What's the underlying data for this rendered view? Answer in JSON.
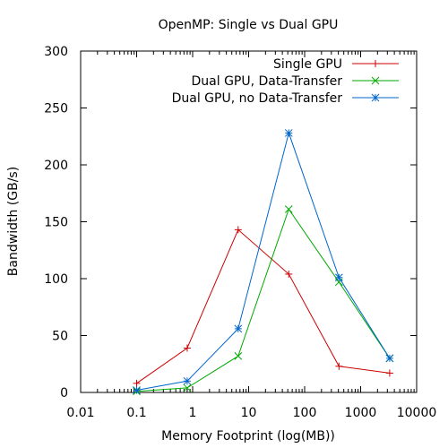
{
  "chart_data": {
    "type": "line",
    "title": "OpenMP: Single vs Dual GPU",
    "xlabel": "Memory Footprint (log(MB))",
    "ylabel": "Bandwidth (GB/s)",
    "x_scale": "log",
    "xlim": [
      0.01,
      10000
    ],
    "ylim": [
      0,
      300
    ],
    "x_ticks": [
      0.01,
      0.1,
      1,
      10,
      100,
      1000,
      10000
    ],
    "x_tick_labels": [
      "0.01",
      "0.1",
      "1",
      "10",
      "100",
      "1000",
      "10000"
    ],
    "y_ticks": [
      0,
      50,
      100,
      150,
      200,
      250,
      300
    ],
    "y_tick_labels": [
      "0",
      "50",
      "100",
      "150",
      "200",
      "250",
      "300"
    ],
    "legend_position": "top-right",
    "grid": false,
    "series": [
      {
        "name": "Single GPU",
        "color": "#cc0000",
        "marker": "plus",
        "x": [
          0.1,
          0.8,
          6.5,
          52,
          410,
          3300
        ],
        "y": [
          8,
          39,
          143,
          104,
          23,
          17
        ]
      },
      {
        "name": "Dual GPU, Data-Transfer",
        "color": "#00aa00",
        "marker": "cross",
        "x": [
          0.1,
          0.8,
          6.5,
          52,
          410,
          3300
        ],
        "y": [
          1,
          4,
          32,
          161,
          97,
          30
        ]
      },
      {
        "name": "Dual GPU, no Data-Transfer",
        "color": "#0066cc",
        "marker": "star",
        "x": [
          0.1,
          0.8,
          6.5,
          52,
          410,
          3300
        ],
        "y": [
          2,
          10,
          56,
          228,
          101,
          30
        ]
      }
    ]
  }
}
